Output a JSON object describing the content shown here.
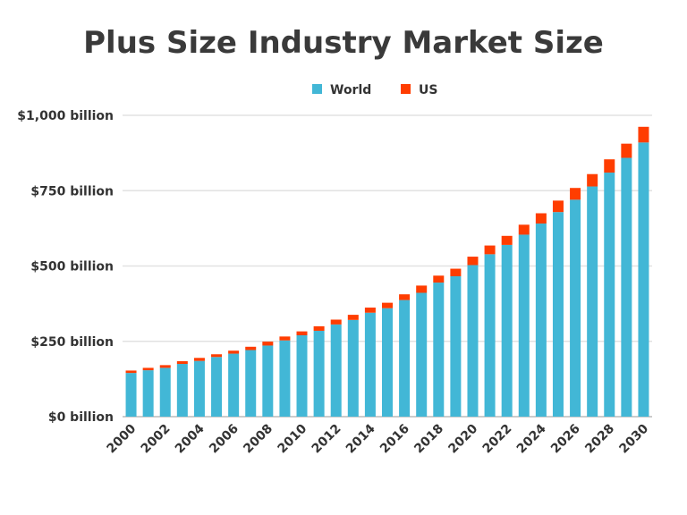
{
  "chart_data": {
    "type": "bar",
    "stacked": true,
    "title": "Plus Size Industry Market Size",
    "xlabel": "",
    "ylabel": "",
    "ylim": [
      0,
      1000
    ],
    "y_ticks": [
      "$0 billion",
      "$250 billion",
      "$500 billion",
      "$750 billion",
      "$1,000 billion"
    ],
    "y_tick_values": [
      0,
      250,
      500,
      750,
      1000
    ],
    "grid": true,
    "legend_position": "top",
    "categories": [
      "2000",
      "2001",
      "2002",
      "2003",
      "2004",
      "2005",
      "2006",
      "2007",
      "2008",
      "2009",
      "2010",
      "2011",
      "2012",
      "2013",
      "2014",
      "2015",
      "2016",
      "2017",
      "2018",
      "2019",
      "2020",
      "2021",
      "2022",
      "2023",
      "2024",
      "2025",
      "2026",
      "2027",
      "2028",
      "2029",
      "2030"
    ],
    "x_tick_labels": [
      "2000",
      "2002",
      "2004",
      "2006",
      "2008",
      "2010",
      "2012",
      "2014",
      "2016",
      "2018",
      "2020",
      "2022",
      "2024",
      "2026",
      "2028",
      "2030"
    ],
    "series": [
      {
        "name": "World",
        "color": "#42b7d6",
        "values": [
          145,
          154,
          162,
          175,
          185,
          198,
          209,
          221,
          236,
          253,
          270,
          285,
          306,
          321,
          345,
          360,
          387,
          411,
          445,
          466,
          503,
          539,
          570,
          604,
          641,
          679,
          720,
          764,
          810,
          859,
          910
        ]
      },
      {
        "name": "US",
        "color": "#ff3d00",
        "values": [
          8,
          8,
          9,
          9,
          10,
          9,
          10,
          11,
          13,
          13,
          13,
          15,
          16,
          17,
          17,
          18,
          19,
          24,
          23,
          25,
          28,
          29,
          30,
          33,
          34,
          38,
          39,
          41,
          44,
          47,
          52
        ]
      }
    ]
  }
}
